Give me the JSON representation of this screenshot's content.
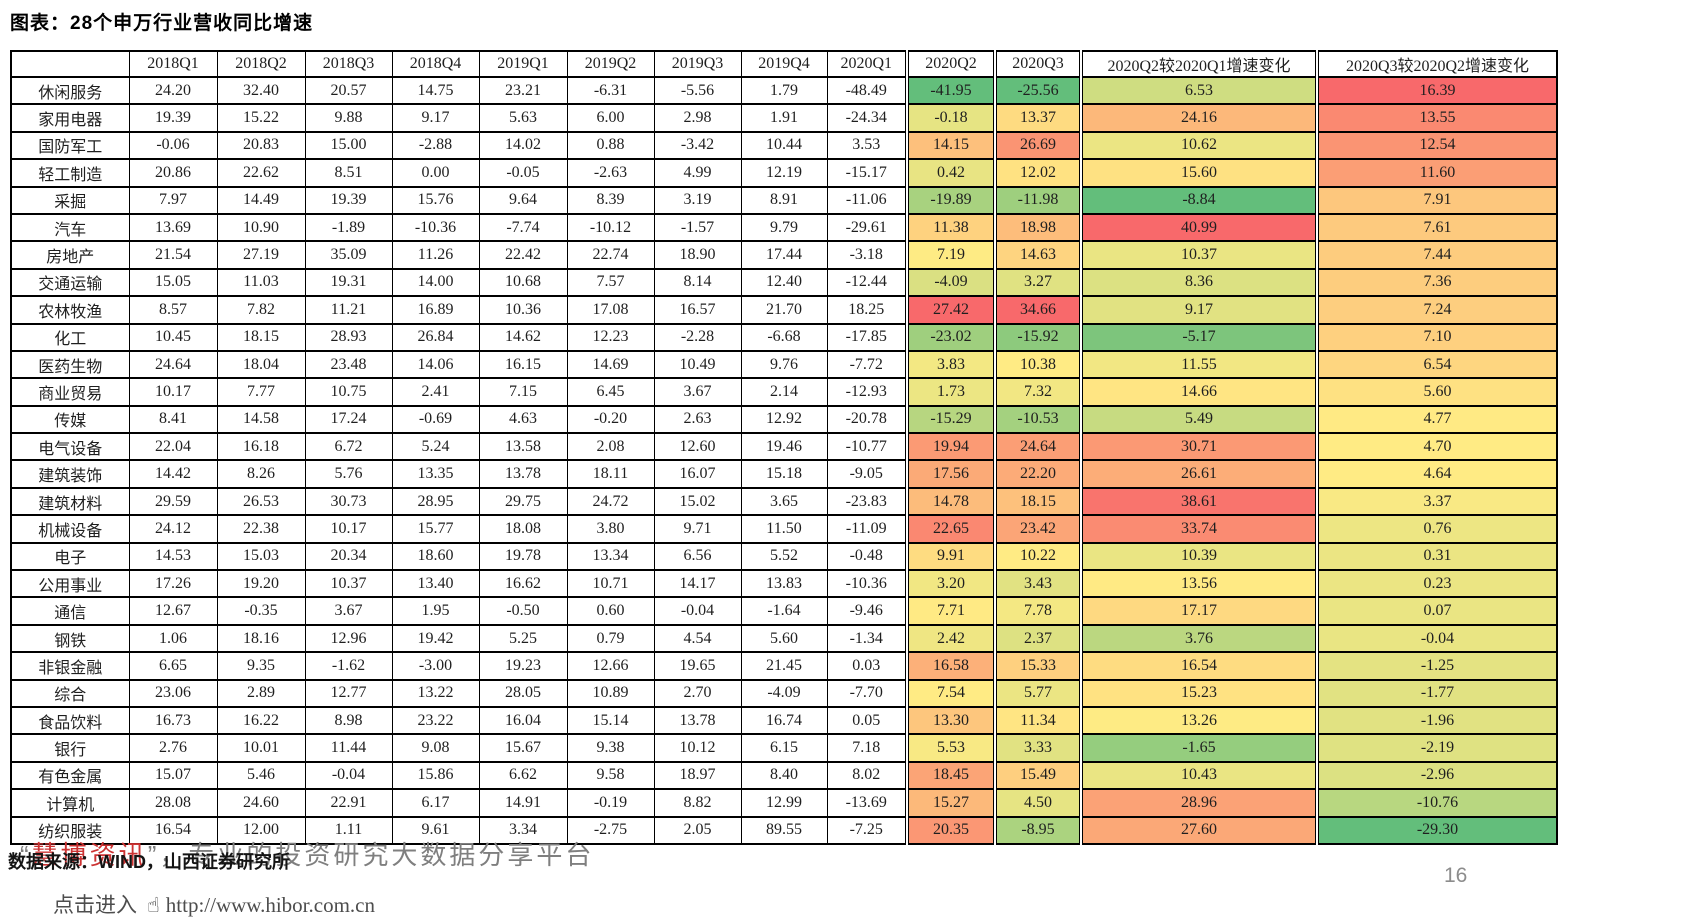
{
  "page": {
    "title": "图表：28个申万行业营收同比增速",
    "source_note": "数据来源：WIND，山西证券研究所",
    "page_number": "16",
    "watermark": {
      "quote_open": "“",
      "brand": "慧博资讯",
      "quote_close": "”",
      "tagline": "，专业的投资研究大数据分享平台"
    },
    "link_line": {
      "prefix": "点击进入",
      "icon": "hand-pointer-icon",
      "url": "http://www.hibor.com.cn"
    }
  },
  "chart_data": {
    "type": "table",
    "title": "图表：28个申万行业营收同比增速",
    "columns": [
      "",
      "2018Q1",
      "2018Q2",
      "2018Q3",
      "2018Q4",
      "2019Q1",
      "2019Q2",
      "2019Q3",
      "2019Q4",
      "2020Q1",
      "2020Q2",
      "2020Q3",
      "2020Q2较2020Q1增速变化",
      "2020Q3较2020Q2增速变化"
    ],
    "heat_value_indices": [
      9,
      10,
      11,
      12
    ],
    "color_scale": {
      "low": "#63BE7B",
      "mid": "#FFEB84",
      "high": "#F8696B",
      "rule": "per-column min/median/max"
    },
    "rows": [
      {
        "industry": "休闲服务",
        "values": [
          24.2,
          32.4,
          20.57,
          14.75,
          23.21,
          -6.31,
          -5.56,
          1.79,
          -48.49,
          -41.95,
          -25.56,
          6.53,
          16.39
        ]
      },
      {
        "industry": "家用电器",
        "values": [
          19.39,
          15.22,
          9.88,
          9.17,
          5.63,
          6.0,
          2.98,
          1.91,
          -24.34,
          -0.18,
          13.37,
          24.16,
          13.55
        ]
      },
      {
        "industry": "国防军工",
        "values": [
          -0.06,
          20.83,
          15.0,
          -2.88,
          14.02,
          0.88,
          -3.42,
          10.44,
          3.53,
          14.15,
          26.69,
          10.62,
          12.54
        ]
      },
      {
        "industry": "轻工制造",
        "values": [
          20.86,
          22.62,
          8.51,
          0.0,
          -0.05,
          -2.63,
          4.99,
          12.19,
          -15.17,
          0.42,
          12.02,
          15.6,
          11.6
        ]
      },
      {
        "industry": "采掘",
        "values": [
          7.97,
          14.49,
          19.39,
          15.76,
          9.64,
          8.39,
          3.19,
          8.91,
          -11.06,
          -19.89,
          -11.98,
          -8.84,
          7.91
        ]
      },
      {
        "industry": "汽车",
        "values": [
          13.69,
          10.9,
          -1.89,
          -10.36,
          -7.74,
          -10.12,
          -1.57,
          9.79,
          -29.61,
          11.38,
          18.98,
          40.99,
          7.61
        ]
      },
      {
        "industry": "房地产",
        "values": [
          21.54,
          27.19,
          35.09,
          11.26,
          22.42,
          22.74,
          18.9,
          17.44,
          -3.18,
          7.19,
          14.63,
          10.37,
          7.44
        ]
      },
      {
        "industry": "交通运输",
        "values": [
          15.05,
          11.03,
          19.31,
          14.0,
          10.68,
          7.57,
          8.14,
          12.4,
          -12.44,
          -4.09,
          3.27,
          8.36,
          7.36
        ]
      },
      {
        "industry": "农林牧渔",
        "values": [
          8.57,
          7.82,
          11.21,
          16.89,
          10.36,
          17.08,
          16.57,
          21.7,
          18.25,
          27.42,
          34.66,
          9.17,
          7.24
        ]
      },
      {
        "industry": "化工",
        "values": [
          10.45,
          18.15,
          28.93,
          26.84,
          14.62,
          12.23,
          -2.28,
          -6.68,
          -17.85,
          -23.02,
          -15.92,
          -5.17,
          7.1
        ]
      },
      {
        "industry": "医药生物",
        "values": [
          24.64,
          18.04,
          23.48,
          14.06,
          16.15,
          14.69,
          10.49,
          9.76,
          -7.72,
          3.83,
          10.38,
          11.55,
          6.54
        ]
      },
      {
        "industry": "商业贸易",
        "values": [
          10.17,
          7.77,
          10.75,
          2.41,
          7.15,
          6.45,
          3.67,
          2.14,
          -12.93,
          1.73,
          7.32,
          14.66,
          5.6
        ]
      },
      {
        "industry": "传媒",
        "values": [
          8.41,
          14.58,
          17.24,
          -0.69,
          4.63,
          -0.2,
          2.63,
          12.92,
          -20.78,
          -15.29,
          -10.53,
          5.49,
          4.77
        ]
      },
      {
        "industry": "电气设备",
        "values": [
          22.04,
          16.18,
          6.72,
          5.24,
          13.58,
          2.08,
          12.6,
          19.46,
          -10.77,
          19.94,
          24.64,
          30.71,
          4.7
        ]
      },
      {
        "industry": "建筑装饰",
        "values": [
          14.42,
          8.26,
          5.76,
          13.35,
          13.78,
          18.11,
          16.07,
          15.18,
          -9.05,
          17.56,
          22.2,
          26.61,
          4.64
        ]
      },
      {
        "industry": "建筑材料",
        "values": [
          29.59,
          26.53,
          30.73,
          28.95,
          29.75,
          24.72,
          15.02,
          3.65,
          -23.83,
          14.78,
          18.15,
          38.61,
          3.37
        ]
      },
      {
        "industry": "机械设备",
        "values": [
          24.12,
          22.38,
          10.17,
          15.77,
          18.08,
          3.8,
          9.71,
          11.5,
          -11.09,
          22.65,
          23.42,
          33.74,
          0.76
        ]
      },
      {
        "industry": "电子",
        "values": [
          14.53,
          15.03,
          20.34,
          18.6,
          19.78,
          13.34,
          6.56,
          5.52,
          -0.48,
          9.91,
          10.22,
          10.39,
          0.31
        ]
      },
      {
        "industry": "公用事业",
        "values": [
          17.26,
          19.2,
          10.37,
          13.4,
          16.62,
          10.71,
          14.17,
          13.83,
          -10.36,
          3.2,
          3.43,
          13.56,
          0.23
        ]
      },
      {
        "industry": "通信",
        "values": [
          12.67,
          -0.35,
          3.67,
          1.95,
          -0.5,
          0.6,
          -0.04,
          -1.64,
          -9.46,
          7.71,
          7.78,
          17.17,
          0.07
        ]
      },
      {
        "industry": "钢铁",
        "values": [
          1.06,
          18.16,
          12.96,
          19.42,
          5.25,
          0.79,
          4.54,
          5.6,
          -1.34,
          2.42,
          2.37,
          3.76,
          -0.04
        ]
      },
      {
        "industry": "非银金融",
        "values": [
          6.65,
          9.35,
          -1.62,
          -3.0,
          19.23,
          12.66,
          19.65,
          21.45,
          0.03,
          16.58,
          15.33,
          16.54,
          -1.25
        ]
      },
      {
        "industry": "综合",
        "values": [
          23.06,
          2.89,
          12.77,
          13.22,
          28.05,
          10.89,
          2.7,
          -4.09,
          -7.7,
          7.54,
          5.77,
          15.23,
          -1.77
        ]
      },
      {
        "industry": "食品饮料",
        "values": [
          16.73,
          16.22,
          8.98,
          23.22,
          16.04,
          15.14,
          13.78,
          16.74,
          0.05,
          13.3,
          11.34,
          13.26,
          -1.96
        ]
      },
      {
        "industry": "银行",
        "values": [
          2.76,
          10.01,
          11.44,
          9.08,
          15.67,
          9.38,
          10.12,
          6.15,
          7.18,
          5.53,
          3.33,
          -1.65,
          -2.19
        ]
      },
      {
        "industry": "有色金属",
        "values": [
          15.07,
          5.46,
          -0.04,
          15.86,
          6.62,
          9.58,
          18.97,
          8.4,
          8.02,
          18.45,
          15.49,
          10.43,
          -2.96
        ]
      },
      {
        "industry": "计算机",
        "values": [
          28.08,
          24.6,
          22.91,
          6.17,
          14.91,
          -0.19,
          8.82,
          12.99,
          -13.69,
          15.27,
          4.5,
          28.96,
          -10.76
        ]
      },
      {
        "industry": "纺织服装",
        "values": [
          16.54,
          12.0,
          1.11,
          9.61,
          3.34,
          -2.75,
          2.05,
          89.55,
          -7.25,
          20.35,
          -8.95,
          27.6,
          -29.3
        ]
      }
    ]
  }
}
